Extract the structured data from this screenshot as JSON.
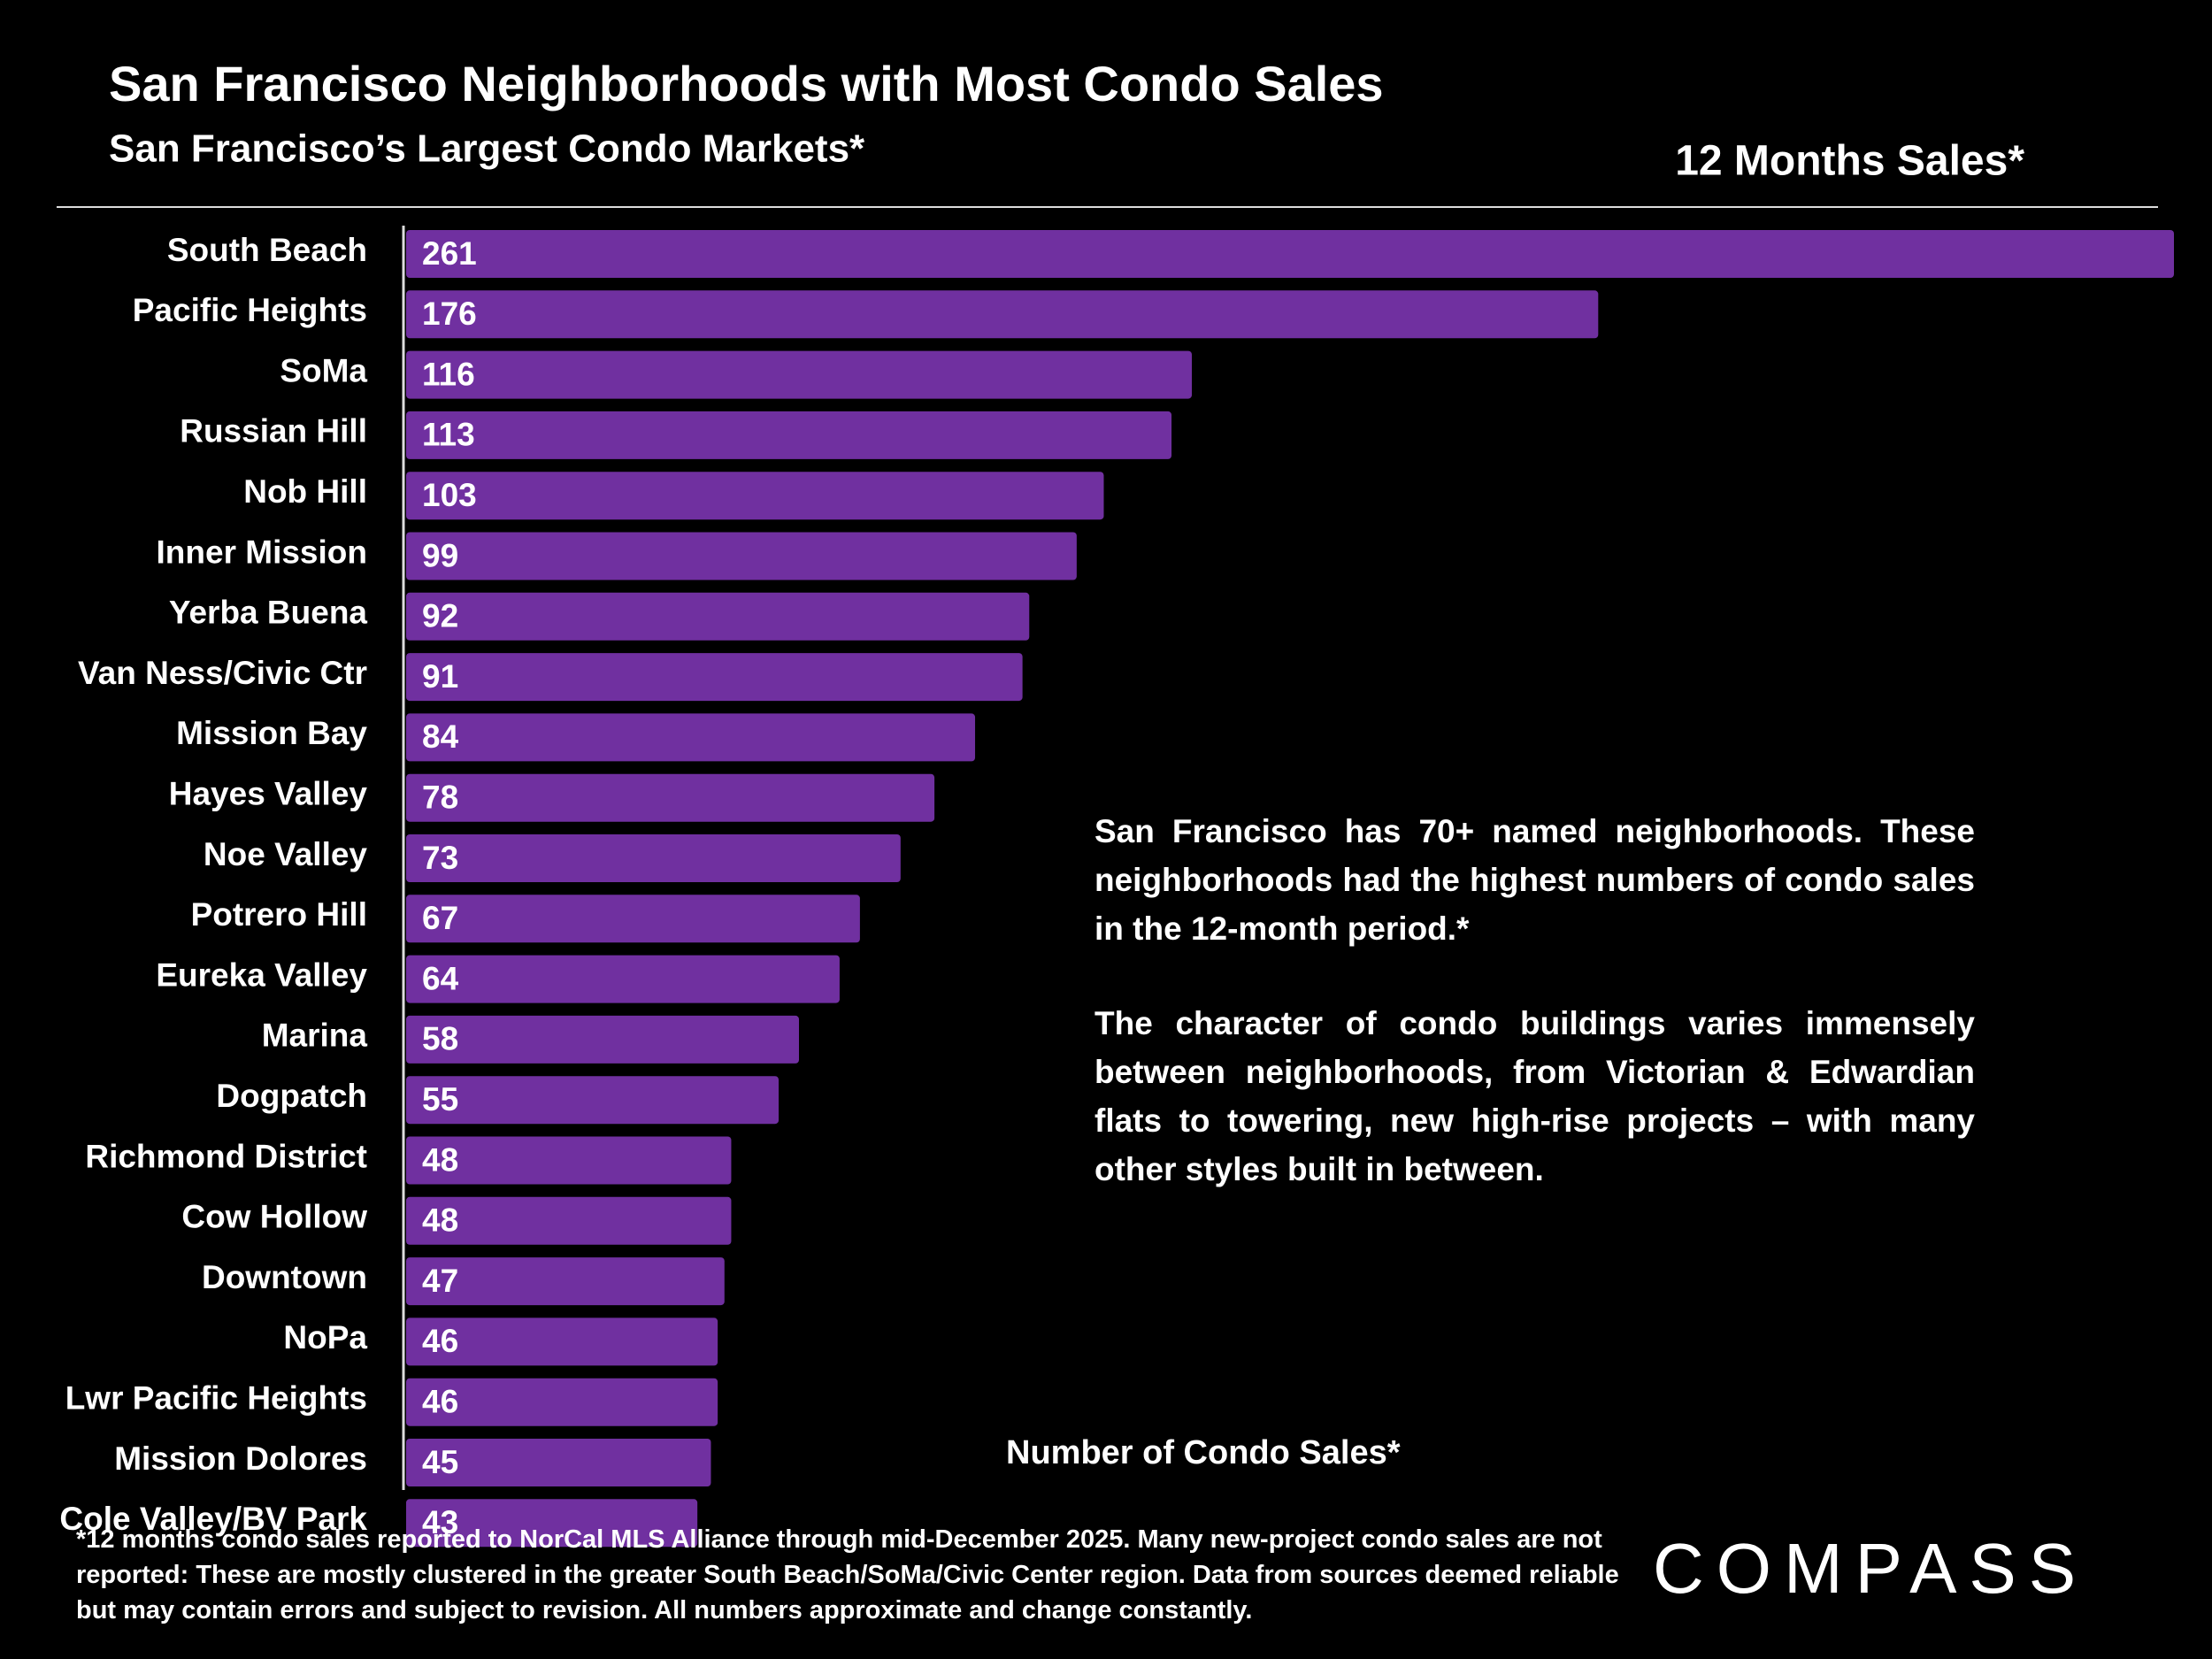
{
  "chart_data": {
    "type": "hbar",
    "title": "San Francisco Neighborhoods with Most Condo Sales",
    "subtitle": "San Francisco’s Largest Condo Markets*",
    "series_label": "12 Months Sales*",
    "x_label": "Number of Condo Sales*",
    "color": "#7030a0",
    "categories": [
      "South Beach",
      "Pacific Heights",
      "SoMa",
      "Russian Hill",
      "Nob Hill",
      "Inner Mission",
      "Yerba Buena",
      "Van Ness/Civic Ctr",
      "Mission Bay",
      "Hayes Valley",
      "Noe Valley",
      "Potrero Hill",
      "Eureka Valley",
      "Marina",
      "Dogpatch",
      "Richmond District",
      "Cow Hollow",
      "Downtown",
      "NoPa",
      "Lwr Pacific Heights",
      "Mission Dolores",
      "Cole Valley/BV Park"
    ],
    "values": [
      261,
      176,
      116,
      113,
      103,
      99,
      92,
      91,
      84,
      78,
      73,
      67,
      64,
      58,
      55,
      48,
      48,
      47,
      46,
      46,
      45,
      43
    ],
    "annotation": [
      "San Francisco has 70+ named neighborhoods. These neighborhoods had the highest numbers of condo sales in the 12-month period.*",
      "The character of condo buildings varies immensely between neighborhoods, from Victorian & Edwardian flats to towering, new high-rise projects – with many other styles built in between."
    ],
    "footnote": "*12 months condo sales reported to NorCal MLS Alliance through mid-December 2025. Many new-project condo sales are not reported:  These are mostly clustered in the greater South Beach/SoMa/Civic Center region. Data from sources deemed reliable but may contain errors and subject to revision. All numbers approximate and change constantly.",
    "brand": "COMPASS"
  }
}
